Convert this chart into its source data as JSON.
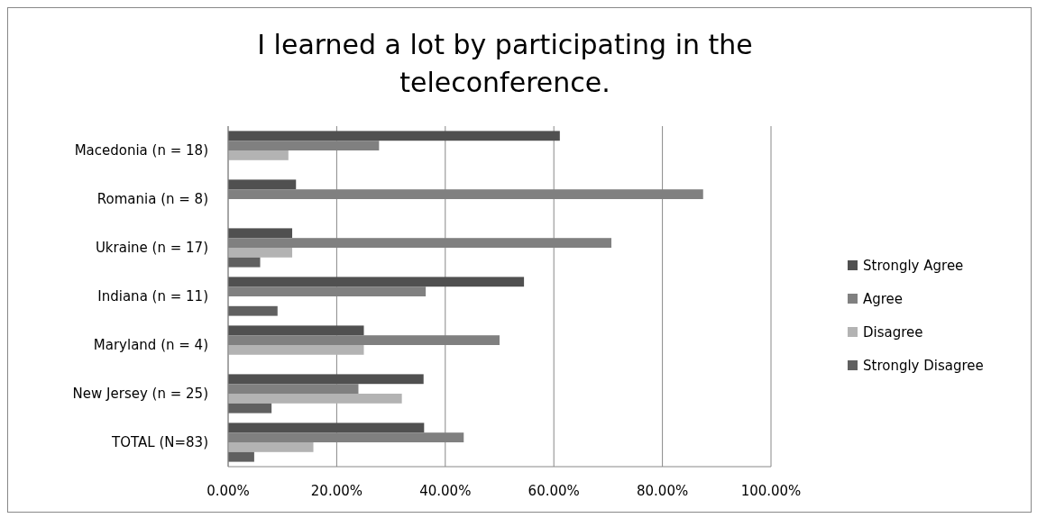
{
  "chart_data": {
    "type": "bar",
    "orientation": "horizontal",
    "title": "I learned a lot by participating in the teleconference.",
    "categories": [
      "Macedonia (n = 18)",
      "Romania (n = 8)",
      "Ukraine (n = 17)",
      "Indiana (n = 11)",
      "Maryland (n = 4)",
      "New Jersey (n = 25)",
      "TOTAL (N=83)"
    ],
    "series": [
      {
        "name": "Strongly Agree",
        "color": "#505050",
        "values": [
          61.1,
          12.5,
          11.8,
          54.5,
          25,
          36,
          36.1
        ]
      },
      {
        "name": "Agree",
        "color": "#808080",
        "values": [
          27.8,
          87.5,
          70.6,
          36.4,
          50,
          24,
          43.4
        ]
      },
      {
        "name": "Disagree",
        "color": "#b3b3b3",
        "values": [
          11.1,
          0,
          11.8,
          0,
          25,
          32,
          15.7
        ]
      },
      {
        "name": "Strongly Disagree",
        "color": "#606060",
        "values": [
          0,
          0,
          5.9,
          9.1,
          0,
          8,
          4.8
        ]
      }
    ],
    "xlim": [
      0,
      100
    ],
    "xticks": [
      {
        "value": 0,
        "label": "0.00%"
      },
      {
        "value": 20,
        "label": "20.00%"
      },
      {
        "value": 40,
        "label": "40.00%"
      },
      {
        "value": 60,
        "label": "60.00%"
      },
      {
        "value": 80,
        "label": "80.00%"
      },
      {
        "value": 100,
        "label": "100.00%"
      }
    ],
    "grid": "x",
    "legend": "right"
  }
}
